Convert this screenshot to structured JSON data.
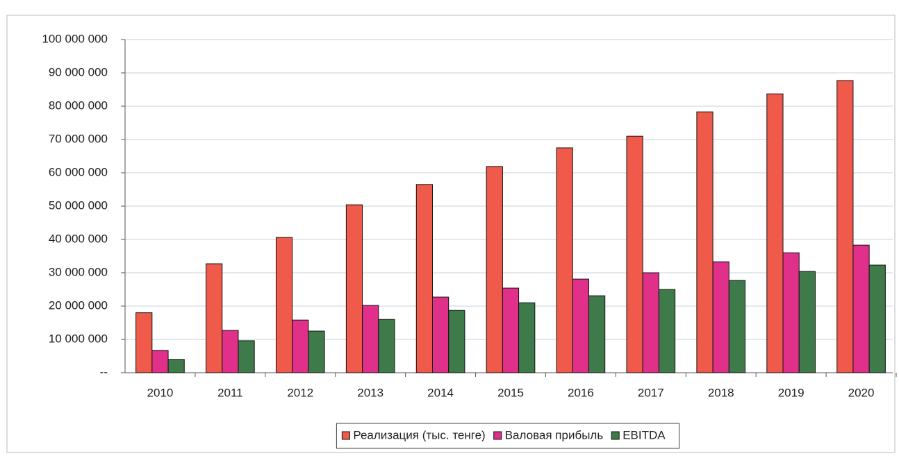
{
  "chart_data": {
    "type": "bar",
    "categories": [
      "2010",
      "2011",
      "2012",
      "2013",
      "2014",
      "2015",
      "2016",
      "2017",
      "2018",
      "2019",
      "2020"
    ],
    "series": [
      {
        "name": "Реализация (тыс. тенге)",
        "color": "#f05a4a",
        "values": [
          18000000,
          32700000,
          40600000,
          50400000,
          56500000,
          61900000,
          67500000,
          71000000,
          78300000,
          83700000,
          87700000
        ]
      },
      {
        "name": "Валовая прибыль",
        "color": "#e0308a",
        "values": [
          6700000,
          12700000,
          15800000,
          20200000,
          22700000,
          25400000,
          28100000,
          30000000,
          33300000,
          36000000,
          38300000
        ]
      },
      {
        "name": "EBITDA",
        "color": "#3f7a4a",
        "values": [
          4000000,
          9600000,
          12500000,
          16000000,
          18700000,
          21000000,
          23100000,
          25000000,
          27700000,
          30400000,
          32300000
        ]
      }
    ],
    "ylim": [
      0,
      100000000
    ],
    "yticks": [
      {
        "value": 0,
        "label": "--"
      },
      {
        "value": 10000000,
        "label": "10 000 000"
      },
      {
        "value": 20000000,
        "label": "20 000 000"
      },
      {
        "value": 30000000,
        "label": "30 000 000"
      },
      {
        "value": 40000000,
        "label": "40 000 000"
      },
      {
        "value": 50000000,
        "label": "50 000 000"
      },
      {
        "value": 60000000,
        "label": "60 000 000"
      },
      {
        "value": 70000000,
        "label": "70 000 000"
      },
      {
        "value": 80000000,
        "label": "80 000 000"
      },
      {
        "value": 90000000,
        "label": "90 000 000"
      },
      {
        "value": 100000000,
        "label": "100 000 000"
      }
    ],
    "grid": true,
    "legend": "bottom"
  }
}
